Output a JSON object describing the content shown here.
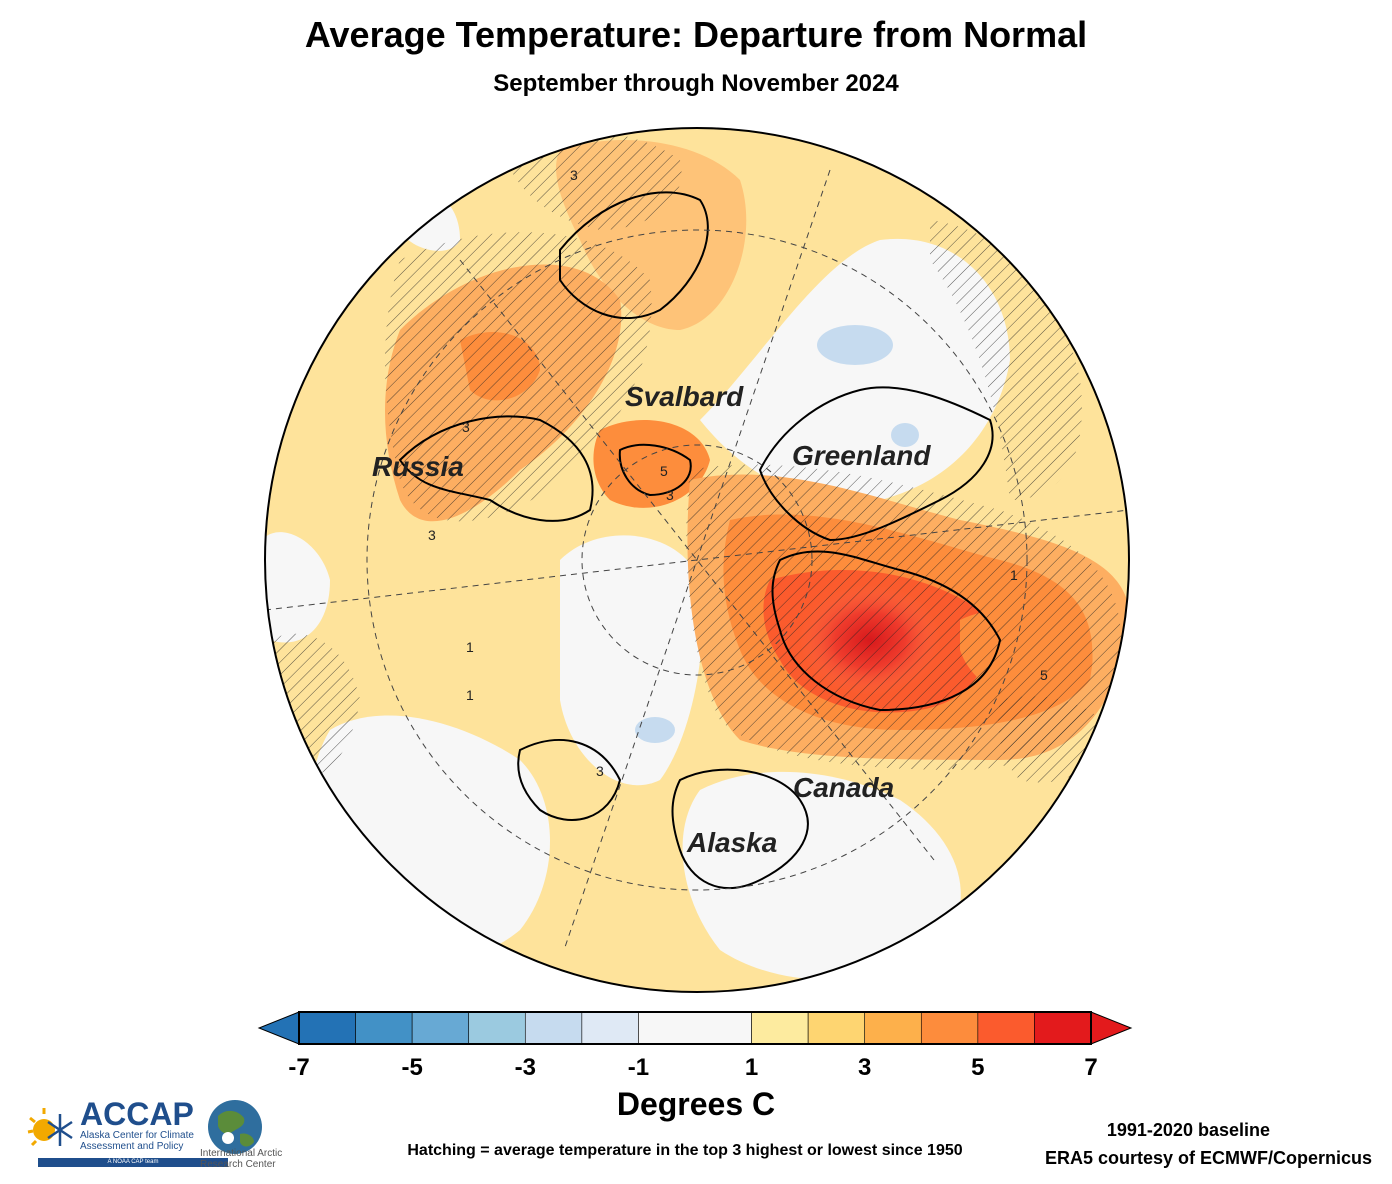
{
  "title": "Average Temperature: Departure from Normal",
  "subtitle": "September through November 2024",
  "map": {
    "projection": "north-polar-stereographic",
    "region_labels": [
      "Svalbard",
      "Greenland",
      "Russia",
      "Canada",
      "Alaska"
    ],
    "contour_labels": [
      "3",
      "3",
      "3",
      "5",
      "3",
      "1",
      "1",
      "3",
      "5",
      "1"
    ]
  },
  "colorbar": {
    "tick_labels": [
      "-7",
      "-5",
      "-3",
      "-1",
      "1",
      "3",
      "5",
      "7"
    ],
    "bins": [
      -7,
      -6,
      -5,
      -4,
      -3,
      -2,
      -1,
      1,
      2,
      3,
      4,
      5,
      6,
      7
    ],
    "colors": [
      "#2372b5",
      "#4291c6",
      "#67a9d4",
      "#9bcae0",
      "#c6dbef",
      "#dfe9f5",
      "#f7f7f7",
      "#fdeb9f",
      "#fed571",
      "#fdb04b",
      "#fd8c3c",
      "#fb5b2d",
      "#e31a1c"
    ],
    "under_color": "#2372b5",
    "over_color": "#e31a1c",
    "units": "Degrees C"
  },
  "hatching_note": "Hatching = average temperature in the top 3 highest or lowest since 1950",
  "baseline_note": "1991-2020 baseline",
  "credit": "ERA5 courtesy of ECMWF/Copernicus",
  "logos": {
    "accap_name": "ACCAP",
    "accap_tagline": "Alaska Center for Climate Assessment and Policy",
    "accap_subtag": "A NOAA CAP team",
    "iarc_name": "International Arctic Research Center"
  }
}
